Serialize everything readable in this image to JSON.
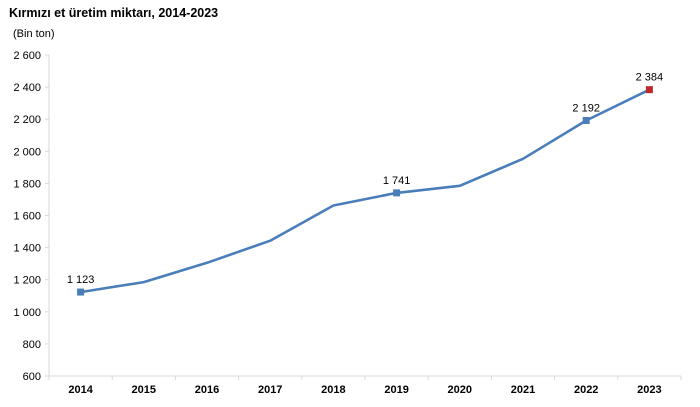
{
  "chart_data": {
    "type": "line",
    "title": "Kırmızı et üretim miktarı, 2014-2023",
    "ylabel": "(Bin ton)",
    "xlabel": "",
    "categories": [
      "2014",
      "2015",
      "2016",
      "2017",
      "2018",
      "2019",
      "2020",
      "2021",
      "2022",
      "2023"
    ],
    "series": [
      {
        "values": [
          1123,
          1185,
          1305,
          1443,
          1662,
          1741,
          1785,
          1953,
          2192,
          2384
        ]
      }
    ],
    "ylim": [
      600,
      2600
    ],
    "yticks": [
      600,
      800,
      1000,
      1200,
      1400,
      1600,
      1800,
      2000,
      2200,
      2400,
      2600
    ],
    "ytick_labels": [
      "600",
      "800",
      "1 000",
      "1 200",
      "1 400",
      "1 600",
      "1 800",
      "2 000",
      "2 200",
      "2 400",
      "2 600"
    ],
    "data_labels": [
      {
        "index": 0,
        "text": "1 123"
      },
      {
        "index": 5,
        "text": "1 741"
      },
      {
        "index": 8,
        "text": "2 192"
      },
      {
        "index": 9,
        "text": "2 384"
      }
    ],
    "grid": false,
    "legend": "none",
    "colors": {
      "line": "#4a7ebb",
      "marker": "#4a7ebb",
      "last_marker": "#c0282d",
      "axis": "#d9d9d9"
    }
  }
}
